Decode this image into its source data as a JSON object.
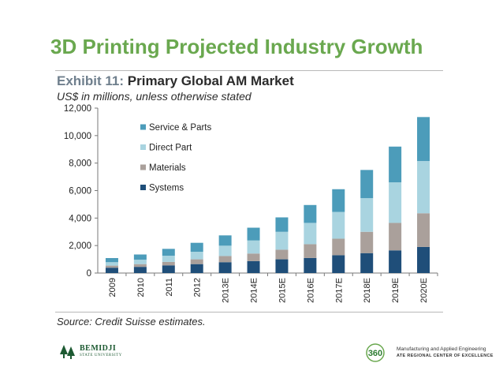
{
  "slide": {
    "title": "3D Printing Projected Industry Growth"
  },
  "exhibit": {
    "number": "Exhibit 11:",
    "title": "Primary Global AM Market",
    "subtitle": "US$ in millions, unless otherwise stated"
  },
  "source": "Source: Credit Suisse estimates.",
  "logos": {
    "left_name": "BEMIDJI",
    "left_sub": "STATE UNIVERSITY",
    "right_line1": "Manufacturing and Applied Engineering",
    "right_line2": "ATE REGIONAL CENTER OF EXCELLENCE",
    "right_badge": "360"
  },
  "chart_data": {
    "type": "bar",
    "stacked": true,
    "categories": [
      "2009",
      "2010",
      "2011",
      "2012",
      "2013E",
      "2014E",
      "2015E",
      "2016E",
      "2017E",
      "2018E",
      "2019E",
      "2020E"
    ],
    "series": [
      {
        "name": "Systems",
        "color": "#1f4e79",
        "values": [
          390,
          450,
          560,
          650,
          790,
          870,
          1000,
          1100,
          1300,
          1450,
          1650,
          1900
        ]
      },
      {
        "name": "Materials",
        "color": "#aaa09b",
        "values": [
          150,
          200,
          250,
          350,
          450,
          550,
          700,
          1000,
          1200,
          1550,
          2000,
          2450
        ]
      },
      {
        "name": "Direct Part",
        "color": "#a9d4e0",
        "values": [
          250,
          320,
          450,
          550,
          750,
          950,
          1300,
          1550,
          1950,
          2450,
          2950,
          3800
        ]
      },
      {
        "name": "Service & Parts",
        "color": "#4c9cba",
        "values": [
          300,
          380,
          500,
          650,
          750,
          930,
          1050,
          1300,
          1650,
          2050,
          2600,
          3200
        ]
      }
    ],
    "ylim": [
      0,
      12000
    ],
    "yticks": [
      "0",
      "2,000",
      "4,000",
      "6,000",
      "8,000",
      "10,000",
      "12,000"
    ],
    "legend_order": [
      "Service & Parts",
      "Direct Part",
      "Materials",
      "Systems"
    ],
    "legend_position": "top-left",
    "grid": false
  }
}
